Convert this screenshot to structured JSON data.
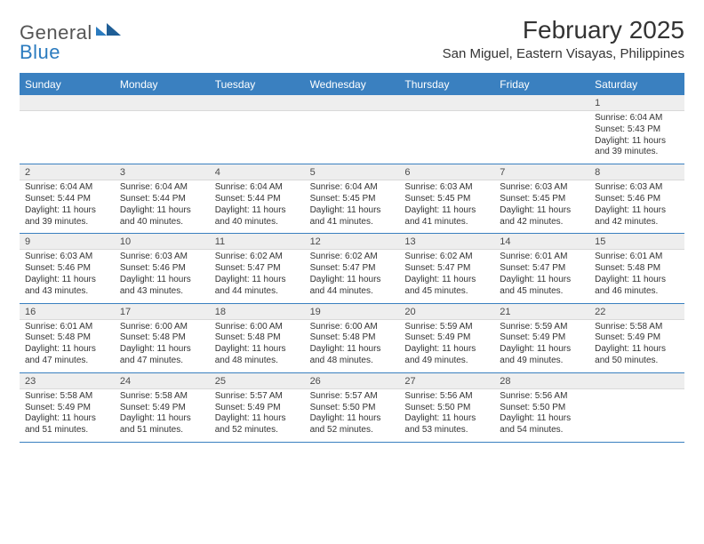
{
  "brand": {
    "name1": "General",
    "name2": "Blue"
  },
  "header": {
    "title": "February 2025",
    "subtitle": "San Miguel, Eastern Visayas, Philippines"
  },
  "colors": {
    "accent": "#3a80c0",
    "header_bg": "#3a80c0",
    "header_text": "#ffffff",
    "daynum_bg": "#eeeeee",
    "body_text": "#333333"
  },
  "calendar": {
    "day_headers": [
      "Sunday",
      "Monday",
      "Tuesday",
      "Wednesday",
      "Thursday",
      "Friday",
      "Saturday"
    ],
    "weeks": [
      {
        "days": [
          {
            "num": "",
            "sunrise": "",
            "sunset": "",
            "daylight1": "",
            "daylight2": ""
          },
          {
            "num": "",
            "sunrise": "",
            "sunset": "",
            "daylight1": "",
            "daylight2": ""
          },
          {
            "num": "",
            "sunrise": "",
            "sunset": "",
            "daylight1": "",
            "daylight2": ""
          },
          {
            "num": "",
            "sunrise": "",
            "sunset": "",
            "daylight1": "",
            "daylight2": ""
          },
          {
            "num": "",
            "sunrise": "",
            "sunset": "",
            "daylight1": "",
            "daylight2": ""
          },
          {
            "num": "",
            "sunrise": "",
            "sunset": "",
            "daylight1": "",
            "daylight2": ""
          },
          {
            "num": "1",
            "sunrise": "Sunrise: 6:04 AM",
            "sunset": "Sunset: 5:43 PM",
            "daylight1": "Daylight: 11 hours",
            "daylight2": "and 39 minutes."
          }
        ]
      },
      {
        "days": [
          {
            "num": "2",
            "sunrise": "Sunrise: 6:04 AM",
            "sunset": "Sunset: 5:44 PM",
            "daylight1": "Daylight: 11 hours",
            "daylight2": "and 39 minutes."
          },
          {
            "num": "3",
            "sunrise": "Sunrise: 6:04 AM",
            "sunset": "Sunset: 5:44 PM",
            "daylight1": "Daylight: 11 hours",
            "daylight2": "and 40 minutes."
          },
          {
            "num": "4",
            "sunrise": "Sunrise: 6:04 AM",
            "sunset": "Sunset: 5:44 PM",
            "daylight1": "Daylight: 11 hours",
            "daylight2": "and 40 minutes."
          },
          {
            "num": "5",
            "sunrise": "Sunrise: 6:04 AM",
            "sunset": "Sunset: 5:45 PM",
            "daylight1": "Daylight: 11 hours",
            "daylight2": "and 41 minutes."
          },
          {
            "num": "6",
            "sunrise": "Sunrise: 6:03 AM",
            "sunset": "Sunset: 5:45 PM",
            "daylight1": "Daylight: 11 hours",
            "daylight2": "and 41 minutes."
          },
          {
            "num": "7",
            "sunrise": "Sunrise: 6:03 AM",
            "sunset": "Sunset: 5:45 PM",
            "daylight1": "Daylight: 11 hours",
            "daylight2": "and 42 minutes."
          },
          {
            "num": "8",
            "sunrise": "Sunrise: 6:03 AM",
            "sunset": "Sunset: 5:46 PM",
            "daylight1": "Daylight: 11 hours",
            "daylight2": "and 42 minutes."
          }
        ]
      },
      {
        "days": [
          {
            "num": "9",
            "sunrise": "Sunrise: 6:03 AM",
            "sunset": "Sunset: 5:46 PM",
            "daylight1": "Daylight: 11 hours",
            "daylight2": "and 43 minutes."
          },
          {
            "num": "10",
            "sunrise": "Sunrise: 6:03 AM",
            "sunset": "Sunset: 5:46 PM",
            "daylight1": "Daylight: 11 hours",
            "daylight2": "and 43 minutes."
          },
          {
            "num": "11",
            "sunrise": "Sunrise: 6:02 AM",
            "sunset": "Sunset: 5:47 PM",
            "daylight1": "Daylight: 11 hours",
            "daylight2": "and 44 minutes."
          },
          {
            "num": "12",
            "sunrise": "Sunrise: 6:02 AM",
            "sunset": "Sunset: 5:47 PM",
            "daylight1": "Daylight: 11 hours",
            "daylight2": "and 44 minutes."
          },
          {
            "num": "13",
            "sunrise": "Sunrise: 6:02 AM",
            "sunset": "Sunset: 5:47 PM",
            "daylight1": "Daylight: 11 hours",
            "daylight2": "and 45 minutes."
          },
          {
            "num": "14",
            "sunrise": "Sunrise: 6:01 AM",
            "sunset": "Sunset: 5:47 PM",
            "daylight1": "Daylight: 11 hours",
            "daylight2": "and 45 minutes."
          },
          {
            "num": "15",
            "sunrise": "Sunrise: 6:01 AM",
            "sunset": "Sunset: 5:48 PM",
            "daylight1": "Daylight: 11 hours",
            "daylight2": "and 46 minutes."
          }
        ]
      },
      {
        "days": [
          {
            "num": "16",
            "sunrise": "Sunrise: 6:01 AM",
            "sunset": "Sunset: 5:48 PM",
            "daylight1": "Daylight: 11 hours",
            "daylight2": "and 47 minutes."
          },
          {
            "num": "17",
            "sunrise": "Sunrise: 6:00 AM",
            "sunset": "Sunset: 5:48 PM",
            "daylight1": "Daylight: 11 hours",
            "daylight2": "and 47 minutes."
          },
          {
            "num": "18",
            "sunrise": "Sunrise: 6:00 AM",
            "sunset": "Sunset: 5:48 PM",
            "daylight1": "Daylight: 11 hours",
            "daylight2": "and 48 minutes."
          },
          {
            "num": "19",
            "sunrise": "Sunrise: 6:00 AM",
            "sunset": "Sunset: 5:48 PM",
            "daylight1": "Daylight: 11 hours",
            "daylight2": "and 48 minutes."
          },
          {
            "num": "20",
            "sunrise": "Sunrise: 5:59 AM",
            "sunset": "Sunset: 5:49 PM",
            "daylight1": "Daylight: 11 hours",
            "daylight2": "and 49 minutes."
          },
          {
            "num": "21",
            "sunrise": "Sunrise: 5:59 AM",
            "sunset": "Sunset: 5:49 PM",
            "daylight1": "Daylight: 11 hours",
            "daylight2": "and 49 minutes."
          },
          {
            "num": "22",
            "sunrise": "Sunrise: 5:58 AM",
            "sunset": "Sunset: 5:49 PM",
            "daylight1": "Daylight: 11 hours",
            "daylight2": "and 50 minutes."
          }
        ]
      },
      {
        "days": [
          {
            "num": "23",
            "sunrise": "Sunrise: 5:58 AM",
            "sunset": "Sunset: 5:49 PM",
            "daylight1": "Daylight: 11 hours",
            "daylight2": "and 51 minutes."
          },
          {
            "num": "24",
            "sunrise": "Sunrise: 5:58 AM",
            "sunset": "Sunset: 5:49 PM",
            "daylight1": "Daylight: 11 hours",
            "daylight2": "and 51 minutes."
          },
          {
            "num": "25",
            "sunrise": "Sunrise: 5:57 AM",
            "sunset": "Sunset: 5:49 PM",
            "daylight1": "Daylight: 11 hours",
            "daylight2": "and 52 minutes."
          },
          {
            "num": "26",
            "sunrise": "Sunrise: 5:57 AM",
            "sunset": "Sunset: 5:50 PM",
            "daylight1": "Daylight: 11 hours",
            "daylight2": "and 52 minutes."
          },
          {
            "num": "27",
            "sunrise": "Sunrise: 5:56 AM",
            "sunset": "Sunset: 5:50 PM",
            "daylight1": "Daylight: 11 hours",
            "daylight2": "and 53 minutes."
          },
          {
            "num": "28",
            "sunrise": "Sunrise: 5:56 AM",
            "sunset": "Sunset: 5:50 PM",
            "daylight1": "Daylight: 11 hours",
            "daylight2": "and 54 minutes."
          },
          {
            "num": "",
            "sunrise": "",
            "sunset": "",
            "daylight1": "",
            "daylight2": ""
          }
        ]
      }
    ]
  }
}
